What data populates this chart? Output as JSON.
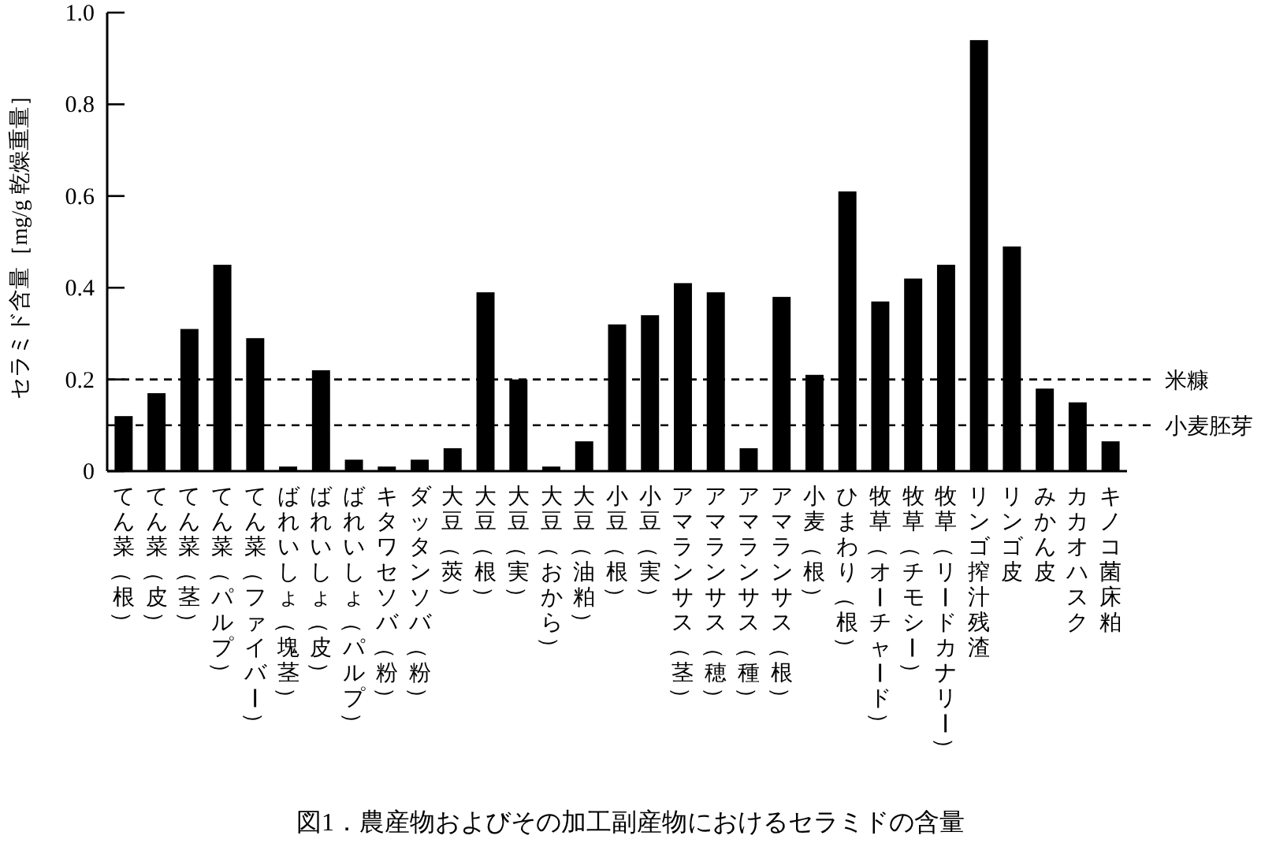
{
  "chart_data": {
    "type": "bar",
    "title": "図1．農産物およびその加工副産物におけるセラミドの含量",
    "ylabel": "セラミド含量［mg/g 乾燥重量］",
    "categories": [
      "てん菜（根）",
      "てん菜（皮）",
      "てん菜（茎）",
      "てん菜（パルプ）",
      "てん菜（ファイバー）",
      "ばれいしょ（塊茎）",
      "ばれいしょ（皮）",
      "ばれいしょ（パルプ）",
      "キタワセソバ（粉）",
      "ダッタンソバ（粉）",
      "大豆（莢）",
      "大豆（根）",
      "大豆（実）",
      "大豆（おから）",
      "大豆（油粕）",
      "小豆（根）",
      "小豆（実）",
      "アマランサス（茎）",
      "アマランサス（穂）",
      "アマランサス（種）",
      "アマランサス（根）",
      "小麦（根）",
      "ひまわり（根）",
      "牧草（オーチャード）",
      "牧草（チモシー）",
      "牧草（リードカナリー）",
      "リンゴ搾汁残渣",
      "リンゴ皮",
      "みかん皮",
      "カカオハスク",
      "キノコ菌床粕"
    ],
    "values": [
      0.12,
      0.17,
      0.31,
      0.45,
      0.29,
      0.01,
      0.22,
      0.025,
      0.01,
      0.025,
      0.05,
      0.39,
      0.2,
      0.01,
      0.065,
      0.32,
      0.34,
      0.41,
      0.39,
      0.05,
      0.38,
      0.21,
      0.61,
      0.37,
      0.42,
      0.45,
      0.94,
      0.49,
      0.18,
      0.15,
      0.065
    ],
    "color": "#000000",
    "ylim": [
      0,
      1
    ],
    "yticks": [
      0,
      0.2,
      0.4,
      0.6,
      0.8,
      {
        "value": 1,
        "label": "1.0"
      }
    ],
    "ref_lines": [
      {
        "axis": "y",
        "value": 0.2,
        "label": "米糠",
        "line_style": "dashed"
      },
      {
        "axis": "y",
        "value": 0.1,
        "label": "小麦胚芽",
        "line_style": "dashed"
      }
    ]
  }
}
